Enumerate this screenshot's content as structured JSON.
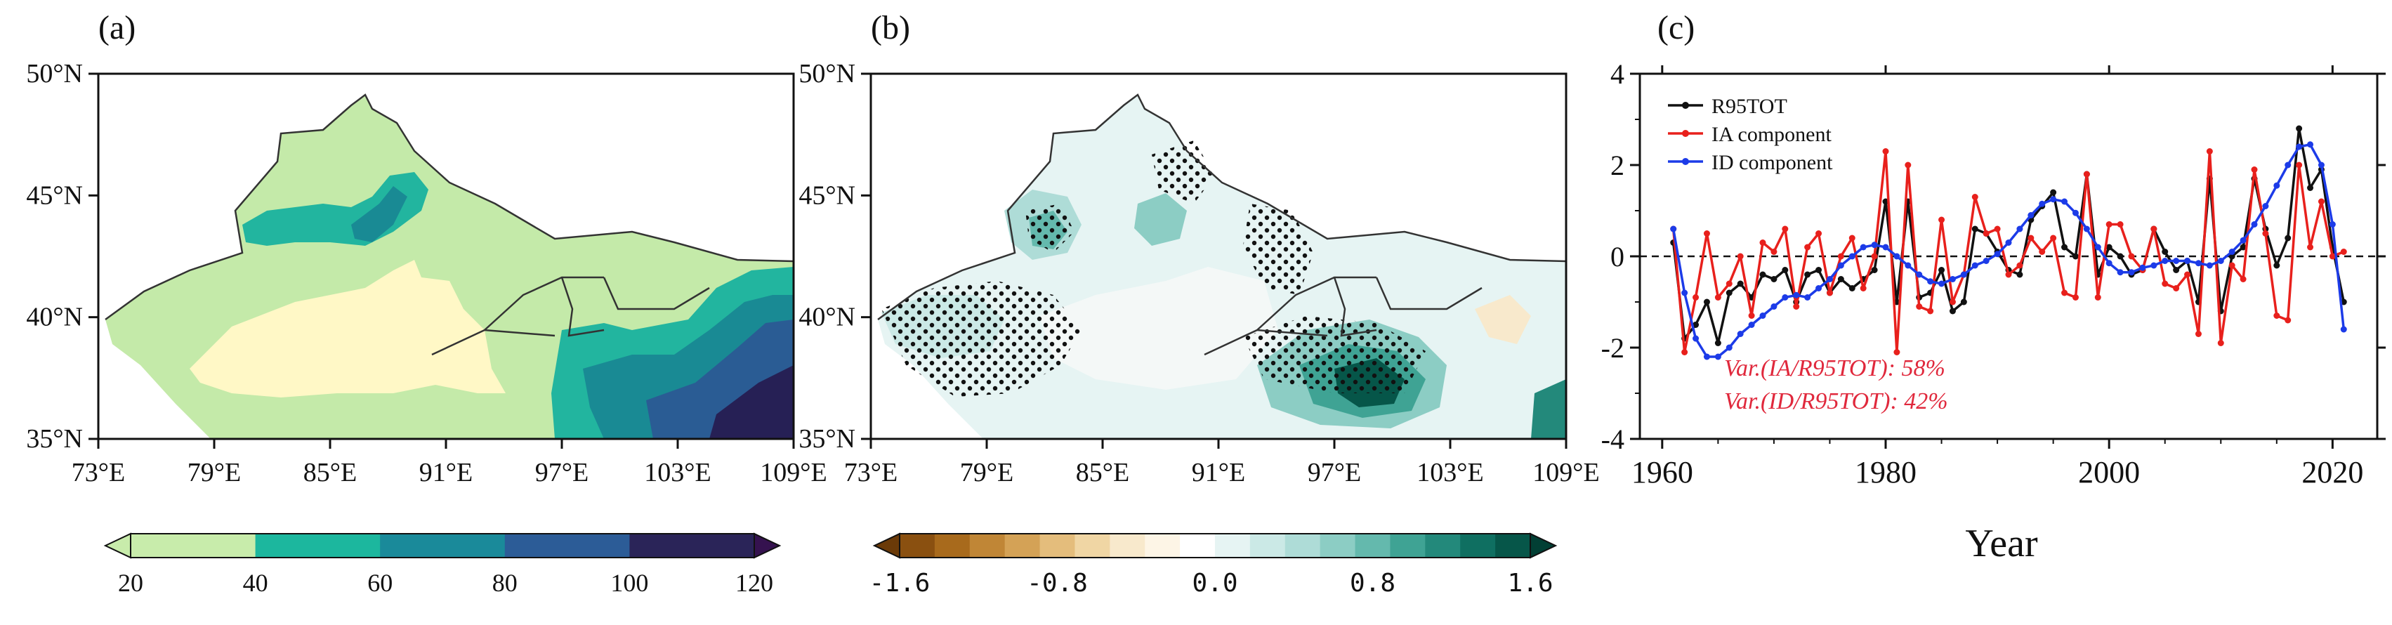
{
  "panels": {
    "a": {
      "label": "(a)",
      "lat_ticks": [
        "50°N",
        "45°N",
        "40°N",
        "35°N"
      ],
      "lon_ticks": [
        "73°E",
        "79°E",
        "85°E",
        "91°E",
        "97°E",
        "103°E",
        "109°E"
      ],
      "colorbar": {
        "labels": [
          "20",
          "40",
          "60",
          "80",
          "100",
          "120"
        ],
        "colors": [
          "#c8ecab",
          "#1cb79e",
          "#1a8a9a",
          "#2c5c97",
          "#2a2458",
          "#35124f"
        ]
      },
      "region_colors": {
        "light": "#fff8c6",
        "green": "#c4eaa9",
        "teal": "#22b59f",
        "deep_teal": "#198a94",
        "blue": "#2a5c94",
        "navy": "#262055"
      }
    },
    "b": {
      "label": "(b)",
      "lat_ticks": [
        "50°N",
        "45°N",
        "40°N",
        "35°N"
      ],
      "lon_ticks": [
        "73°E",
        "79°E",
        "85°E",
        "91°E",
        "97°E",
        "103°E",
        "109°E"
      ],
      "colorbar": {
        "labels": [
          "-1.6",
          "-0.8",
          "0.0",
          "0.8",
          "1.6"
        ],
        "colors": [
          "#6b3a08",
          "#8a5010",
          "#a86a1c",
          "#c08636",
          "#d4a256",
          "#e4bd7c",
          "#f0d6a4",
          "#f8e9cc",
          "#fdf5e6",
          "#ffffff",
          "#e6f4f3",
          "#cbe9e6",
          "#aedcd7",
          "#8ccdc4",
          "#64b9ad",
          "#3fa394",
          "#23897b",
          "#0f6f61",
          "#065649",
          "#023f34"
        ]
      }
    },
    "c": {
      "label": "(c)",
      "xlabel": "Year",
      "y_ticks": [
        "4",
        "2",
        "0",
        "-2",
        "-4"
      ],
      "x_ticks": [
        "1960",
        "1980",
        "2000",
        "2020"
      ],
      "annotations": [
        "Var.(IA/R95TOT): 58%",
        "Var.(ID/R95TOT): 42%"
      ],
      "annotation_color": "#e0283c"
    }
  },
  "chart_data": {
    "type": "line",
    "xlabel": "Year",
    "ylabel": "",
    "xlim": [
      1958,
      2024
    ],
    "ylim": [
      -4,
      4
    ],
    "x": [
      1961,
      1962,
      1963,
      1964,
      1965,
      1966,
      1967,
      1968,
      1969,
      1970,
      1971,
      1972,
      1973,
      1974,
      1975,
      1976,
      1977,
      1978,
      1979,
      1980,
      1981,
      1982,
      1983,
      1984,
      1985,
      1986,
      1987,
      1988,
      1989,
      1990,
      1991,
      1992,
      1993,
      1994,
      1995,
      1996,
      1997,
      1998,
      1999,
      2000,
      2001,
      2002,
      2003,
      2004,
      2005,
      2006,
      2007,
      2008,
      2009,
      2010,
      2011,
      2012,
      2013,
      2014,
      2015,
      2016,
      2017,
      2018,
      2019,
      2020,
      2021
    ],
    "series": [
      {
        "name": "R95TOT",
        "color": "#111111",
        "values": [
          0.3,
          -1.8,
          -1.5,
          -1.0,
          -1.9,
          -0.8,
          -0.6,
          -0.9,
          -0.4,
          -0.5,
          -0.3,
          -1.0,
          -0.4,
          -0.3,
          -0.8,
          -0.5,
          -0.7,
          -0.5,
          -0.3,
          1.2,
          -1.0,
          1.2,
          -0.9,
          -0.8,
          -0.3,
          -1.2,
          -1.0,
          0.6,
          0.5,
          0.1,
          -0.3,
          -0.4,
          0.8,
          1.1,
          1.4,
          0.2,
          0.0,
          1.8,
          -0.4,
          0.2,
          0.0,
          -0.4,
          -0.3,
          0.6,
          0.1,
          -0.3,
          -0.1,
          -1.0,
          1.7,
          -1.2,
          0.0,
          0.2,
          1.7,
          0.6,
          -0.2,
          0.4,
          2.8,
          1.5,
          1.9,
          0.2,
          -1.0
        ]
      },
      {
        "name": "IA component",
        "color": "#e8201c",
        "values": [
          0.6,
          -2.1,
          -0.9,
          0.5,
          -0.9,
          -0.6,
          0.0,
          -1.3,
          0.3,
          0.1,
          0.6,
          -1.1,
          0.2,
          0.5,
          -0.8,
          0.0,
          0.4,
          -0.7,
          0.0,
          2.3,
          -2.1,
          2.0,
          -1.1,
          -1.2,
          0.8,
          -1.0,
          -0.4,
          1.3,
          0.5,
          0.6,
          -0.4,
          -0.2,
          0.4,
          0.1,
          0.4,
          -0.8,
          -0.9,
          1.8,
          -0.9,
          0.7,
          0.7,
          0.0,
          -0.3,
          0.6,
          -0.6,
          -0.7,
          -0.4,
          -1.7,
          2.3,
          -1.9,
          -0.2,
          -0.5,
          1.9,
          0.5,
          -1.3,
          -1.4,
          2.0,
          0.2,
          1.2,
          0.0,
          0.1
        ]
      },
      {
        "name": "ID component",
        "color": "#1c3be8",
        "values": [
          0.6,
          -0.8,
          -1.8,
          -2.2,
          -2.2,
          -2.0,
          -1.7,
          -1.5,
          -1.3,
          -1.1,
          -0.9,
          -0.85,
          -0.9,
          -0.7,
          -0.5,
          -0.2,
          0.0,
          0.2,
          0.25,
          0.2,
          0.0,
          -0.2,
          -0.4,
          -0.55,
          -0.6,
          -0.5,
          -0.4,
          -0.2,
          -0.1,
          0.05,
          0.3,
          0.6,
          0.9,
          1.15,
          1.25,
          1.2,
          0.95,
          0.6,
          0.2,
          -0.15,
          -0.35,
          -0.35,
          -0.25,
          -0.2,
          -0.1,
          -0.1,
          -0.1,
          -0.15,
          -0.2,
          -0.1,
          0.1,
          0.35,
          0.7,
          1.1,
          1.55,
          2.0,
          2.4,
          2.45,
          2.0,
          0.7,
          -1.6
        ]
      }
    ]
  }
}
